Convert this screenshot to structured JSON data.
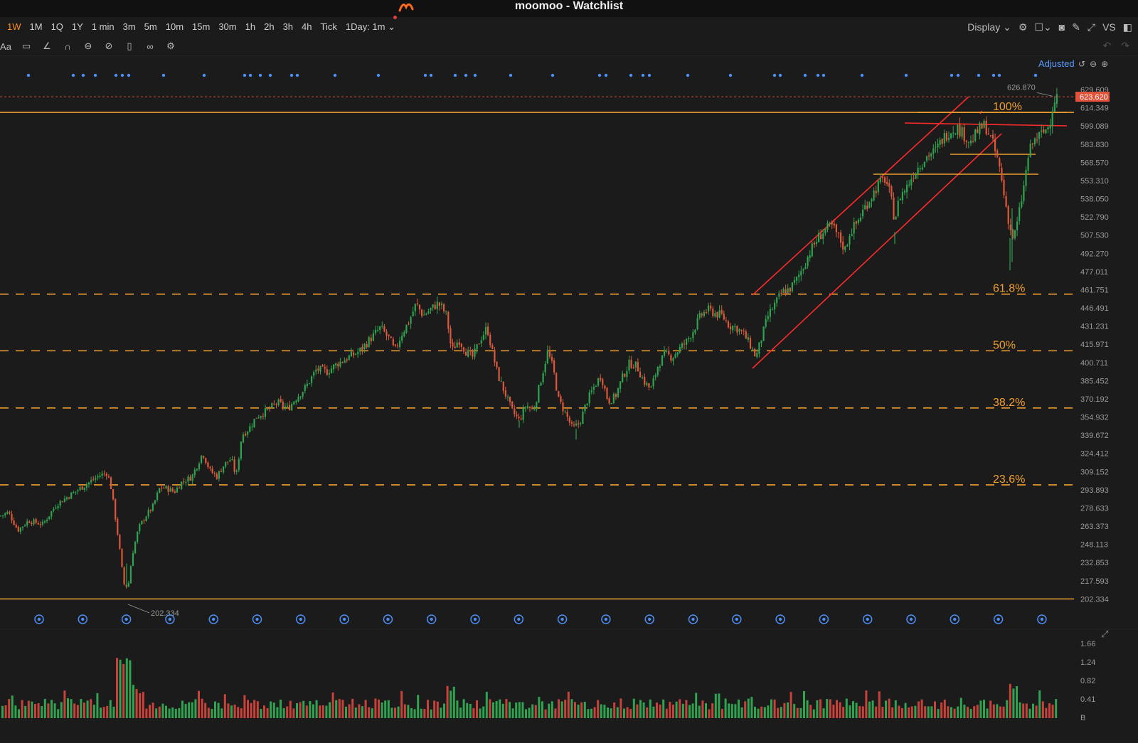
{
  "window": {
    "title": "moomoo - Watchlist"
  },
  "timeframes": [
    "1W",
    "1M",
    "1Q",
    "1Y",
    "1 min",
    "3m",
    "5m",
    "10m",
    "15m",
    "30m",
    "1h",
    "2h",
    "3h",
    "4h",
    "Tick",
    "1Day: 1m"
  ],
  "active_timeframe": "1W",
  "toolbar_right": {
    "display_label": "Display",
    "vs_label": "VS"
  },
  "drawing_tools": [
    "text-tool-icon",
    "comment-icon",
    "line-tool-icon",
    "magnet-icon",
    "eye-hide-icon",
    "erase-icon",
    "trash-icon",
    "link-icon",
    "settings-icon"
  ],
  "chart_header": {
    "adjusted_label": "Adjusted"
  },
  "colors": {
    "up": "#2fa34f",
    "down": "#e0583a",
    "fib": "#f0a030",
    "channel": "#ff2a2a",
    "axis_text": "#9a9a9a",
    "accent": "#ff8a1f",
    "price_tag": "#e0533a"
  },
  "price_axis": {
    "ticks": [
      629.609,
      614.349,
      599.089,
      583.83,
      568.57,
      553.31,
      538.05,
      522.79,
      507.53,
      492.27,
      477.011,
      461.751,
      446.491,
      431.231,
      415.971,
      400.711,
      385.452,
      370.192,
      354.932,
      339.672,
      324.412,
      309.152,
      293.893,
      278.633,
      263.373,
      248.113,
      232.853,
      217.593,
      202.334
    ],
    "current_price": "623.620",
    "high_marker": "626.870",
    "low_marker": "202.334"
  },
  "volume_axis": {
    "ticks": [
      "1.66",
      "1.24",
      "0.82",
      "0.41",
      "B"
    ]
  },
  "fib_levels": [
    {
      "label": "100%",
      "price": 610.5,
      "style": "solid"
    },
    {
      "label": "61.8%",
      "price": 458.0,
      "style": "dashed"
    },
    {
      "label": "50%",
      "price": 410.5,
      "style": "dashed"
    },
    {
      "label": "38.2%",
      "price": 362.5,
      "style": "dashed"
    },
    {
      "label": "23.6%",
      "price": 298.0,
      "style": "dashed"
    },
    {
      "label": "",
      "price": 202.334,
      "style": "solid"
    }
  ],
  "chart_data": {
    "type": "candlestick",
    "title": "",
    "ylim": [
      196,
      632
    ],
    "series": [
      {
        "name": "",
        "anchors": [
          [
            0,
            272
          ],
          [
            12,
            275
          ],
          [
            25,
            260
          ],
          [
            40,
            268
          ],
          [
            60,
            265
          ],
          [
            80,
            282
          ],
          [
            100,
            290
          ],
          [
            120,
            298
          ],
          [
            140,
            306
          ],
          [
            150,
            308
          ],
          [
            155,
            300
          ],
          [
            160,
            280
          ],
          [
            167,
            250
          ],
          [
            174,
            215
          ],
          [
            180,
            212
          ],
          [
            186,
            240
          ],
          [
            195,
            262
          ],
          [
            205,
            272
          ],
          [
            215,
            280
          ],
          [
            225,
            296
          ],
          [
            235,
            295
          ],
          [
            245,
            292
          ],
          [
            255,
            300
          ],
          [
            270,
            305
          ],
          [
            285,
            325
          ],
          [
            295,
            310
          ],
          [
            305,
            305
          ],
          [
            315,
            315
          ],
          [
            325,
            320
          ],
          [
            332,
            305
          ],
          [
            340,
            340
          ],
          [
            350,
            345
          ],
          [
            360,
            355
          ],
          [
            375,
            360
          ],
          [
            390,
            367
          ],
          [
            405,
            362
          ],
          [
            415,
            370
          ],
          [
            430,
            380
          ],
          [
            445,
            395
          ],
          [
            460,
            393
          ],
          [
            475,
            400
          ],
          [
            490,
            405
          ],
          [
            505,
            410
          ],
          [
            520,
            420
          ],
          [
            535,
            430
          ],
          [
            548,
            420
          ],
          [
            555,
            410
          ],
          [
            565,
            425
          ],
          [
            575,
            435
          ],
          [
            585,
            450
          ],
          [
            595,
            440
          ],
          [
            605,
            445
          ],
          [
            615,
            450
          ],
          [
            620,
            448
          ],
          [
            628,
            440
          ],
          [
            635,
            410
          ],
          [
            645,
            420
          ],
          [
            655,
            410
          ],
          [
            665,
            405
          ],
          [
            675,
            420
          ],
          [
            685,
            430
          ],
          [
            692,
            410
          ],
          [
            700,
            390
          ],
          [
            710,
            375
          ],
          [
            720,
            360
          ],
          [
            730,
            352
          ],
          [
            740,
            365
          ],
          [
            750,
            360
          ],
          [
            760,
            385
          ],
          [
            770,
            410
          ],
          [
            778,
            395
          ],
          [
            785,
            370
          ],
          [
            795,
            358
          ],
          [
            805,
            345
          ],
          [
            815,
            350
          ],
          [
            825,
            368
          ],
          [
            835,
            380
          ],
          [
            845,
            390
          ],
          [
            855,
            368
          ],
          [
            865,
            372
          ],
          [
            875,
            388
          ],
          [
            885,
            400
          ],
          [
            895,
            398
          ],
          [
            905,
            385
          ],
          [
            915,
            378
          ],
          [
            925,
            398
          ],
          [
            935,
            408
          ],
          [
            945,
            405
          ],
          [
            955,
            412
          ],
          [
            965,
            418
          ],
          [
            975,
            428
          ],
          [
            985,
            440
          ],
          [
            995,
            445
          ],
          [
            1005,
            442
          ],
          [
            1015,
            440
          ],
          [
            1025,
            432
          ],
          [
            1035,
            430
          ],
          [
            1045,
            425
          ],
          [
            1055,
            415
          ],
          [
            1063,
            405
          ],
          [
            1070,
            420
          ],
          [
            1080,
            440
          ],
          [
            1090,
            450
          ],
          [
            1100,
            460
          ],
          [
            1110,
            462
          ],
          [
            1120,
            470
          ],
          [
            1130,
            482
          ],
          [
            1140,
            495
          ],
          [
            1150,
            505
          ],
          [
            1160,
            512
          ],
          [
            1170,
            515
          ],
          [
            1180,
            505
          ],
          [
            1188,
            495
          ],
          [
            1195,
            510
          ],
          [
            1205,
            518
          ],
          [
            1215,
            530
          ],
          [
            1225,
            540
          ],
          [
            1235,
            550
          ],
          [
            1245,
            555
          ],
          [
            1252,
            540
          ],
          [
            1258,
            520
          ],
          [
            1265,
            540
          ],
          [
            1275,
            548
          ],
          [
            1285,
            560
          ],
          [
            1295,
            568
          ],
          [
            1305,
            575
          ],
          [
            1315,
            578
          ],
          [
            1325,
            588
          ],
          [
            1335,
            595
          ],
          [
            1345,
            598
          ],
          [
            1355,
            592
          ],
          [
            1365,
            585
          ],
          [
            1375,
            595
          ],
          [
            1385,
            600
          ],
          [
            1392,
            590
          ],
          [
            1398,
            580
          ],
          [
            1405,
            565
          ],
          [
            1412,
            540
          ],
          [
            1418,
            520
          ],
          [
            1423,
            505
          ],
          [
            1428,
            510
          ],
          [
            1434,
            530
          ],
          [
            1440,
            550
          ],
          [
            1446,
            575
          ],
          [
            1452,
            585
          ],
          [
            1460,
            590
          ],
          [
            1468,
            594
          ],
          [
            1475,
            600
          ],
          [
            1480,
            615
          ],
          [
            1484,
            624
          ]
        ]
      }
    ],
    "volume_xlim": [
      0,
      1.72
    ]
  }
}
